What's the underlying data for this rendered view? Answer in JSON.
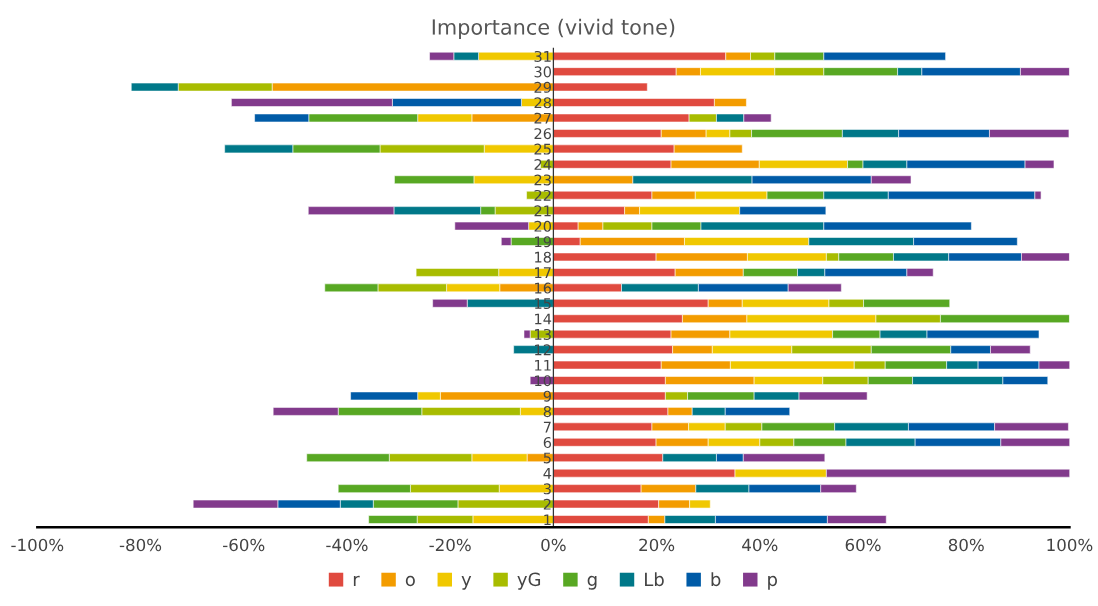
{
  "chart_data": {
    "type": "bar",
    "title": "Importance (vivid tone)",
    "orientation": "horizontal",
    "stacked": true,
    "categories": [
      "31",
      "30",
      "29",
      "28",
      "27",
      "26",
      "25",
      "24",
      "23",
      "22",
      "21",
      "20",
      "19",
      "18",
      "17",
      "16",
      "15",
      "14",
      "13",
      "12",
      "11",
      "10",
      "9",
      "8",
      "7",
      "6",
      "5",
      "4",
      "3",
      "2",
      "1"
    ],
    "xlim": [
      -100,
      100
    ],
    "xticks": [
      {
        "value": -100,
        "label": "-100%"
      },
      {
        "value": -80,
        "label": "-80%"
      },
      {
        "value": -60,
        "label": "-60%"
      },
      {
        "value": -40,
        "label": "-40%"
      },
      {
        "value": -20,
        "label": "-20%"
      },
      {
        "value": 0,
        "label": "0%"
      },
      {
        "value": 20,
        "label": "20%"
      },
      {
        "value": 40,
        "label": "40%"
      },
      {
        "value": 60,
        "label": "60%"
      },
      {
        "value": 80,
        "label": "80%"
      },
      {
        "value": 100,
        "label": "100%"
      }
    ],
    "grid": false,
    "legend": "bottom",
    "series": [
      {
        "name": "r",
        "color": "#e04a3f",
        "values": [
          33.4,
          23.8,
          18.2,
          31.2,
          26.3,
          20.9,
          23.4,
          22.8,
          null,
          19.1,
          13.8,
          4.8,
          5.2,
          19.9,
          23.6,
          13.2,
          30.0,
          25,
          22.8,
          23.1,
          20.9,
          21.7,
          21.7,
          22.2,
          19.1,
          19.9,
          21.2,
          35.2,
          17.0,
          20.4,
          18.4
        ]
      },
      {
        "name": "o",
        "color": "#f39c00",
        "values": [
          4.8,
          4.7,
          -54.5,
          6.2,
          -15.8,
          8.7,
          13.2,
          17.1,
          15.4,
          8.4,
          2.9,
          4.8,
          20.2,
          17.7,
          13.2,
          -10.4,
          6.6,
          12.5,
          11.4,
          7.7,
          13.4,
          17.2,
          -21.9,
          4.7,
          7.1,
          10.1,
          -5.1,
          null,
          10.6,
          6.0,
          3.2
        ]
      },
      {
        "name": "y",
        "color": "#f0c800",
        "values": [
          -14.5,
          14.4,
          null,
          -6.2,
          -10.5,
          4.6,
          -13.4,
          17.1,
          -15.4,
          13.9,
          19.4,
          -4.8,
          24.1,
          15.3,
          -10.6,
          -10.3,
          16.8,
          25,
          19.9,
          15.4,
          24.0,
          13.3,
          -4.4,
          -6.4,
          7.1,
          10.0,
          -10.7,
          17.7,
          -10.5,
          4.0,
          -15.6
        ]
      },
      {
        "name": "yG",
        "color": "#a8bc00",
        "values": [
          4.7,
          9.5,
          -18.2,
          null,
          5.3,
          4.2,
          -20.2,
          -2.5,
          null,
          -5.2,
          -11.3,
          9.5,
          null,
          2.4,
          -16.0,
          -13.3,
          6.7,
          12.5,
          -4.5,
          15.4,
          6.0,
          8.8,
          4.3,
          -19.1,
          7.1,
          6.6,
          -16.0,
          null,
          -17.2,
          -18.5,
          -10.8
        ]
      },
      {
        "name": "g",
        "color": "#58a823",
        "values": [
          9.5,
          14.3,
          null,
          null,
          -21.1,
          17.6,
          -16.9,
          3.0,
          -15.4,
          11.0,
          -2.8,
          9.5,
          -8.2,
          10.6,
          10.5,
          -10.3,
          16.7,
          25,
          9.2,
          15.4,
          11.9,
          8.6,
          12.9,
          -16.2,
          14.1,
          10.1,
          -16.0,
          null,
          -14.0,
          -16.4,
          -9.4
        ]
      },
      {
        "name": "Lb",
        "color": "#007889",
        "values": [
          -4.8,
          4.7,
          -9.1,
          null,
          5.3,
          10.9,
          -13.2,
          8.5,
          23.1,
          12.5,
          -16.8,
          23.8,
          20.3,
          10.7,
          5.3,
          14.9,
          -16.7,
          null,
          9.1,
          -7.7,
          6.1,
          17.5,
          8.7,
          6.4,
          14.3,
          13.4,
          10.4,
          null,
          10.3,
          -6.4,
          9.8
        ]
      },
      {
        "name": "b",
        "color": "#005ba7",
        "values": [
          23.6,
          19.1,
          null,
          -25,
          -10.5,
          17.6,
          null,
          22.9,
          23.1,
          28.4,
          16.7,
          28.6,
          20.1,
          14.1,
          15.9,
          17.4,
          null,
          null,
          21.7,
          7.7,
          11.8,
          8.7,
          -13.0,
          12.5,
          16.7,
          16.6,
          5.2,
          null,
          13.9,
          -12.1,
          21.7
        ]
      },
      {
        "name": "p",
        "color": "#823a8c",
        "values": [
          -4.7,
          9.5,
          null,
          -31.2,
          5.3,
          15.4,
          null,
          5.6,
          7.7,
          1.2,
          -16.6,
          -14.3,
          -1.9,
          9.3,
          5.1,
          10.3,
          -6.7,
          null,
          -1.2,
          7.7,
          6.0,
          -4.5,
          13.2,
          -12.6,
          14.3,
          13.4,
          15.8,
          47.2,
          6.9,
          -16.4,
          11.4
        ]
      }
    ]
  }
}
